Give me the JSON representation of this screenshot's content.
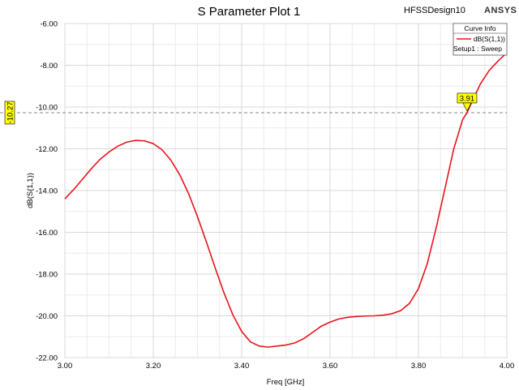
{
  "header": {
    "design_name": "HFSSDesign10",
    "brand": "ANSYS"
  },
  "legend": {
    "title": "Curve Info",
    "entry": "dB(S(1,1))",
    "subentry": "Setup1 : Sweep",
    "placement": "top-right"
  },
  "marker": {
    "x_label": "3.91",
    "y_label": "-10.27"
  },
  "colors": {
    "curve": "#e8141c",
    "marker_fill": "#ffff00",
    "grid": "#d8d8d8"
  },
  "chart_data": {
    "type": "line",
    "title": "S Parameter Plot 1",
    "xlabel": "Freq [GHz]",
    "ylabel": "dB(S(1,1))",
    "xlim": [
      3.0,
      4.0
    ],
    "ylim": [
      -22.0,
      -6.0
    ],
    "xticks": [
      "3.00",
      "3.20",
      "3.40",
      "3.60",
      "3.80",
      "4.00"
    ],
    "yticks": [
      "-6.00",
      "-8.00",
      "-10.00",
      "-12.00",
      "-14.00",
      "-16.00",
      "-18.00",
      "-20.00",
      "-22.00"
    ],
    "grid": true,
    "series": [
      {
        "name": "dB(S(1,1))",
        "x": [
          3.0,
          3.02,
          3.04,
          3.06,
          3.08,
          3.1,
          3.12,
          3.14,
          3.16,
          3.18,
          3.2,
          3.22,
          3.24,
          3.26,
          3.28,
          3.3,
          3.32,
          3.34,
          3.36,
          3.38,
          3.4,
          3.42,
          3.44,
          3.46,
          3.48,
          3.5,
          3.52,
          3.54,
          3.56,
          3.58,
          3.6,
          3.62,
          3.64,
          3.66,
          3.68,
          3.7,
          3.72,
          3.74,
          3.76,
          3.78,
          3.8,
          3.82,
          3.84,
          3.86,
          3.88,
          3.9,
          3.91,
          3.92,
          3.94,
          3.96,
          3.98,
          4.0
        ],
        "y": [
          -14.4,
          -13.95,
          -13.45,
          -12.95,
          -12.5,
          -12.15,
          -11.87,
          -11.68,
          -11.6,
          -11.62,
          -11.75,
          -12.05,
          -12.55,
          -13.25,
          -14.15,
          -15.25,
          -16.45,
          -17.7,
          -18.9,
          -19.95,
          -20.75,
          -21.25,
          -21.45,
          -21.5,
          -21.45,
          -21.4,
          -21.3,
          -21.1,
          -20.8,
          -20.5,
          -20.3,
          -20.15,
          -20.07,
          -20.03,
          -20.01,
          -20.0,
          -19.97,
          -19.9,
          -19.75,
          -19.4,
          -18.7,
          -17.5,
          -15.8,
          -13.9,
          -12.0,
          -10.6,
          -10.27,
          -9.8,
          -8.9,
          -8.25,
          -7.8,
          -7.4
        ]
      }
    ]
  }
}
